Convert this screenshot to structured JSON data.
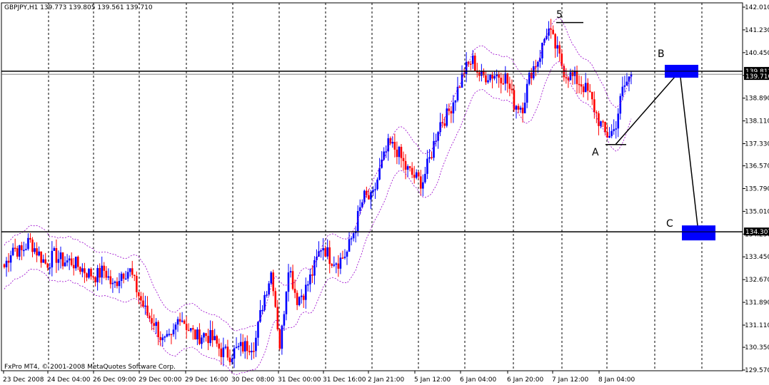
{
  "header": {
    "symbol_info": "GBPJPY,H1  139.773 139.805 139.561 139.710"
  },
  "footer": {
    "copyright": "FxPro MT4, © 2001-2008 MetaQuotes Software Corp."
  },
  "colors": {
    "background": "#ffffff",
    "bull_candle": "#0000ff",
    "bear_candle": "#ff0000",
    "envelope": "#9900cc",
    "hline": "#000000",
    "zone_box": "#0000ff",
    "price_tag_bg": "#000000",
    "price_tag_text": "#ffffff"
  },
  "chart_data": {
    "type": "candlestick",
    "ylim": [
      129.57,
      142.01
    ],
    "y_ticks": [
      "142.010",
      "141.230",
      "140.450",
      "139.670",
      "138.890",
      "138.110",
      "137.330",
      "136.570",
      "135.790",
      "135.010",
      "134.230",
      "133.450",
      "132.670",
      "131.890",
      "131.110",
      "130.350",
      "129.570"
    ],
    "x_labels": [
      "23 Dec 2008",
      "24 Dec 04:00",
      "26 Dec 09:00",
      "29 Dec 00:00",
      "29 Dec 16:00",
      "30 Dec 08:00",
      "31 Dec 00:00",
      "31 Dec 16:00",
      "2 Jan 21:00",
      "5 Jan 12:00",
      "6 Jan 04:00",
      "6 Jan 20:00",
      "7 Jan 12:00",
      "8 Jan 04:00"
    ],
    "price_tags": [
      {
        "label": "139.812",
        "value": 139.812
      },
      {
        "label": "139.710",
        "value": 139.71
      },
      {
        "label": "134.307",
        "value": 134.307
      }
    ],
    "horizontal_lines": [
      139.812,
      139.71,
      134.307
    ],
    "wave_labels": {
      "5": "5",
      "A": "A",
      "B": "B",
      "C": "C"
    },
    "wave_points": {
      "5_peak": 141.48,
      "A_low": 137.3,
      "B_target": 139.812,
      "C_target": 134.307
    },
    "close_path": [
      133.1,
      133.8,
      133.6,
      134.0,
      133.6,
      133.2,
      133.5,
      133.3,
      133.3,
      133.1,
      132.9,
      132.8,
      133.0,
      132.4,
      132.9,
      133.0,
      132.2,
      131.5,
      131.2,
      130.5,
      130.6,
      131.5,
      131.0,
      130.7,
      130.8,
      130.6,
      130.2,
      130.1,
      130.3,
      130.4,
      130.5,
      132.0,
      133.0,
      130.3,
      133.2,
      132.0,
      132.3,
      133.0,
      133.9,
      133.4,
      133.3,
      133.6,
      134.5,
      135.5,
      135.4,
      136.5,
      137.3,
      137.1,
      136.5,
      136.2,
      136.0,
      136.9,
      138.0,
      138.3,
      139.0,
      139.8,
      140.2,
      139.6,
      139.7,
      139.7,
      139.6,
      138.7,
      138.6,
      139.8,
      140.3,
      141.3,
      140.6,
      139.8,
      139.6,
      139.4,
      139.0,
      138.2,
      137.6,
      137.8,
      139.2,
      139.7
    ]
  }
}
